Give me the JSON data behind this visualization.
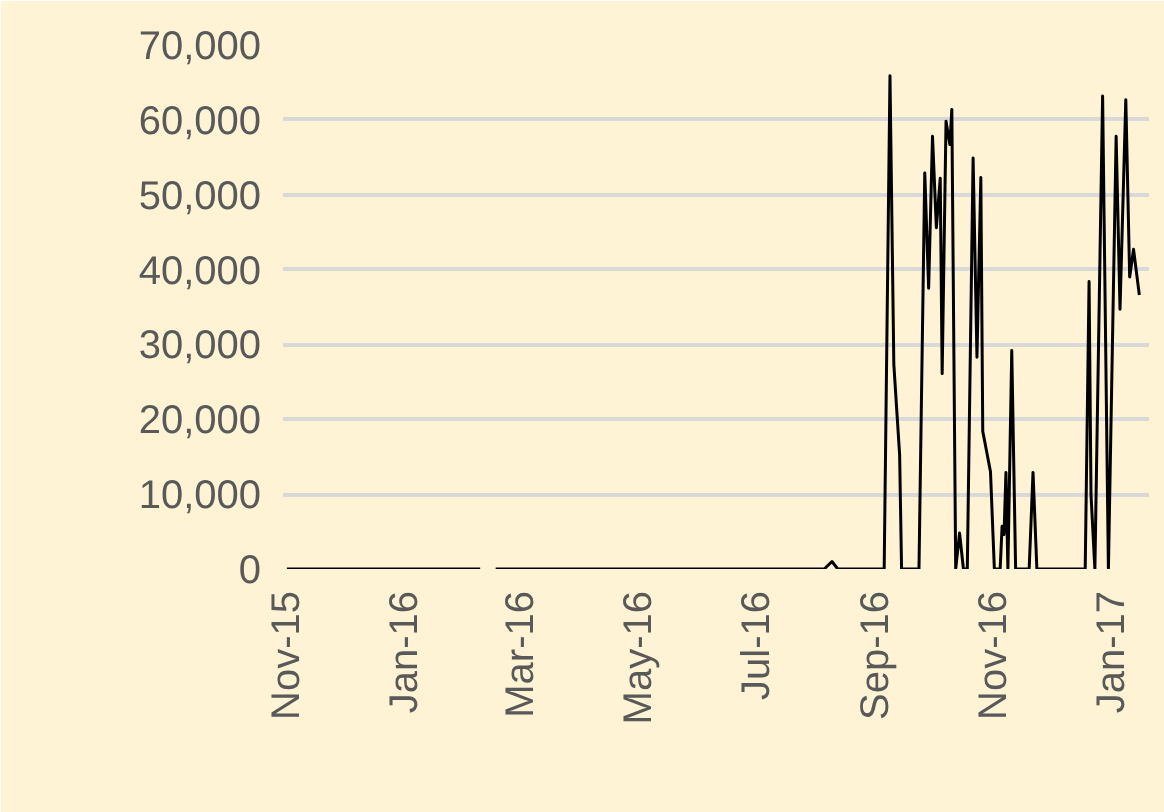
{
  "chart_data": {
    "type": "line",
    "x": [
      "2015-11-01",
      "2015-12-01",
      "2016-01-01",
      "2016-02-09",
      "2016-02-13",
      "2016-02-17",
      "2016-03-15",
      "2016-04-15",
      "2016-05-15",
      "2016-06-15",
      "2016-07-15",
      "2016-08-05",
      "2016-08-09",
      "2016-08-12",
      "2016-09-05",
      "2016-09-08",
      "2016-09-10",
      "2016-09-13",
      "2016-09-14",
      "2016-09-23",
      "2016-09-26",
      "2016-09-28",
      "2016-09-30",
      "2016-10-02",
      "2016-10-04",
      "2016-10-05",
      "2016-10-07",
      "2016-10-09",
      "2016-10-10",
      "2016-10-12",
      "2016-10-14",
      "2016-10-16",
      "2016-10-18",
      "2016-10-21",
      "2016-10-23",
      "2016-10-25",
      "2016-10-26",
      "2016-10-30",
      "2016-11-01",
      "2016-11-04",
      "2016-11-05",
      "2016-11-06",
      "2016-11-07",
      "2016-11-08",
      "2016-11-10",
      "2016-11-12",
      "2016-11-19",
      "2016-11-21",
      "2016-11-23",
      "2016-12-18",
      "2016-12-20",
      "2016-12-21",
      "2016-12-23",
      "2016-12-27",
      "2016-12-30",
      "2017-01-03",
      "2017-01-05",
      "2017-01-08",
      "2017-01-10",
      "2017-01-12",
      "2017-01-15"
    ],
    "series": [
      {
        "color": "#000000",
        "values": [
          0,
          0,
          0,
          0,
          null,
          0,
          0,
          0,
          0,
          0,
          0,
          0,
          1000,
          0,
          0,
          65900,
          27300,
          15200,
          0,
          0,
          52900,
          37500,
          57800,
          45600,
          52200,
          26100,
          59800,
          56700,
          61400,
          0,
          4800,
          0,
          0,
          54900,
          28300,
          52300,
          18400,
          13000,
          0,
          0,
          5700,
          4600,
          12900,
          0,
          29200,
          0,
          0,
          12900,
          0,
          0,
          38400,
          9900,
          0,
          63200,
          0,
          57800,
          34700,
          62700,
          39000,
          42700,
          36600
        ]
      }
    ],
    "xlim": [
      "2015-10-30",
      "2017-01-20"
    ],
    "xticks": [
      {
        "value": "2015-11-01",
        "label": "Nov-15"
      },
      {
        "value": "2016-01-01",
        "label": "Jan-16"
      },
      {
        "value": "2016-03-01",
        "label": "Mar-16"
      },
      {
        "value": "2016-05-01",
        "label": "May-16"
      },
      {
        "value": "2016-07-01",
        "label": "Jul-16"
      },
      {
        "value": "2016-09-01",
        "label": "Sep-16"
      },
      {
        "value": "2016-11-01",
        "label": "Nov-16"
      },
      {
        "value": "2017-01-01",
        "label": "Jan-17"
      }
    ],
    "ylim": [
      0,
      70000
    ],
    "yticks": [
      {
        "value": 0,
        "label": "0"
      },
      {
        "value": 10000,
        "label": "10,000"
      },
      {
        "value": 20000,
        "label": "20,000"
      },
      {
        "value": 30000,
        "label": "30,000"
      },
      {
        "value": 40000,
        "label": "40,000"
      },
      {
        "value": 50000,
        "label": "50,000"
      },
      {
        "value": 60000,
        "label": "60,000"
      },
      {
        "value": 70000,
        "label": "70,000"
      }
    ],
    "grid": "y",
    "line_style": "solid"
  }
}
